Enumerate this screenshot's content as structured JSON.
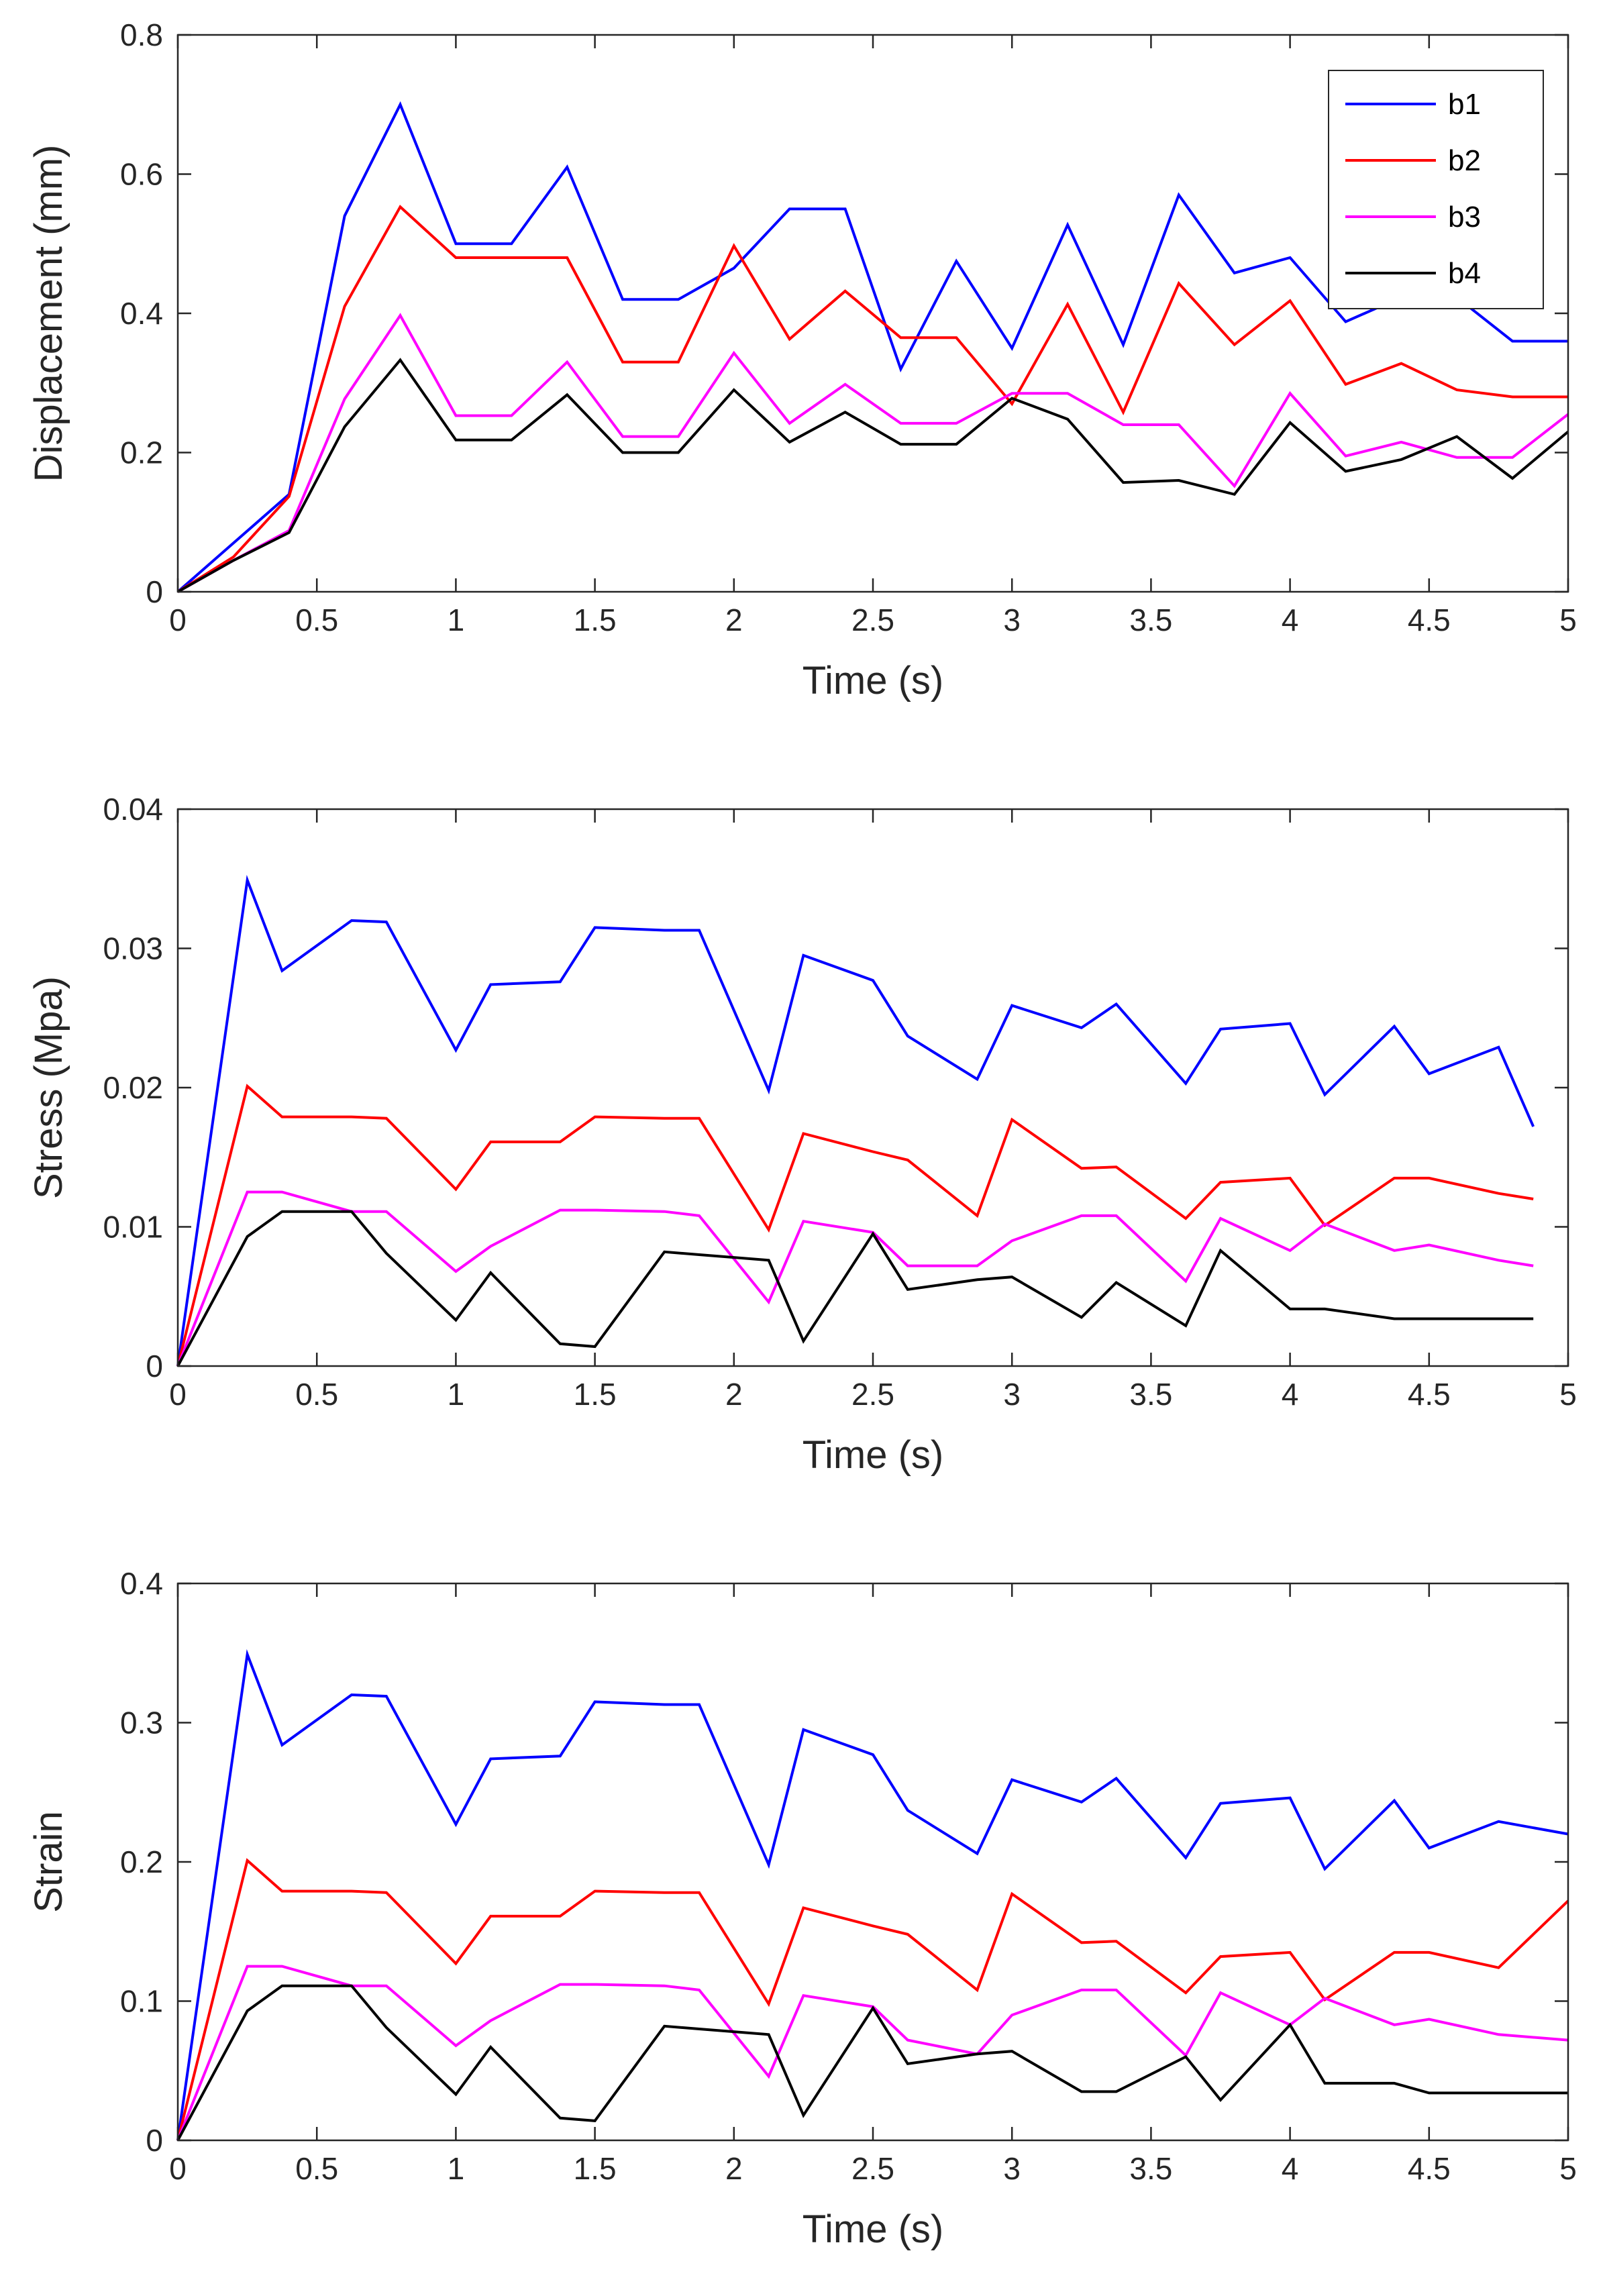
{
  "chart_data": [
    {
      "type": "line",
      "xlabel": "Time (s)",
      "ylabel": "Displacement (mm)",
      "xlim": [
        0,
        5
      ],
      "ylim": [
        0,
        0.8
      ],
      "xticks": [
        "0",
        "0.5",
        "1",
        "1.5",
        "2",
        "2.5",
        "3",
        "3.5",
        "4",
        "4.5",
        "5"
      ],
      "yticks": [
        "0",
        "0.2",
        "0.4",
        "0.6",
        "0.8"
      ],
      "grid": false,
      "legend": {
        "placement": "top-right",
        "entries": [
          "b1",
          "b2",
          "b3",
          "b4"
        ]
      },
      "x": [
        0,
        0.2,
        0.4,
        0.6,
        0.8,
        1.0,
        1.2,
        1.4,
        1.6,
        1.8,
        2.0,
        2.2,
        2.4,
        2.6,
        2.8,
        3.0,
        3.2,
        3.4,
        3.6,
        3.8,
        4.0,
        4.2,
        4.4,
        4.6,
        4.8,
        5.0
      ],
      "series": [
        {
          "name": "b1",
          "color": "#0000ff",
          "values": [
            0,
            0.07,
            0.14,
            0.54,
            0.7,
            0.5,
            0.5,
            0.61,
            0.42,
            0.42,
            0.465,
            0.55,
            0.55,
            0.32,
            0.475,
            0.35,
            0.527,
            0.355,
            0.57,
            0.458,
            0.48,
            0.388,
            0.423,
            0.423,
            0.36,
            0.36
          ]
        },
        {
          "name": "b2",
          "color": "#ff0000",
          "values": [
            0,
            0.05,
            0.137,
            0.41,
            0.553,
            0.48,
            0.48,
            0.48,
            0.33,
            0.33,
            0.497,
            0.363,
            0.432,
            0.365,
            0.365,
            0.27,
            0.413,
            0.258,
            0.443,
            0.355,
            0.418,
            0.298,
            0.328,
            0.29,
            0.28,
            0.28
          ]
        },
        {
          "name": "b3",
          "color": "#ff00ff",
          "values": [
            0,
            0.045,
            0.088,
            0.277,
            0.397,
            0.253,
            0.253,
            0.33,
            0.223,
            0.223,
            0.343,
            0.242,
            0.298,
            0.242,
            0.242,
            0.285,
            0.285,
            0.24,
            0.24,
            0.152,
            0.285,
            0.195,
            0.215,
            0.193,
            0.193,
            0.255
          ]
        },
        {
          "name": "b4",
          "color": "#000000",
          "values": [
            0,
            0.045,
            0.085,
            0.237,
            0.333,
            0.218,
            0.218,
            0.283,
            0.2,
            0.2,
            0.29,
            0.215,
            0.258,
            0.212,
            0.212,
            0.278,
            0.248,
            0.157,
            0.16,
            0.14,
            0.243,
            0.173,
            0.19,
            0.223,
            0.163,
            0.23
          ]
        }
      ]
    },
    {
      "type": "line",
      "xlabel": "Time (s)",
      "ylabel": "Stress (Mpa)",
      "xlim": [
        0,
        5
      ],
      "ylim": [
        0,
        0.04
      ],
      "xticks": [
        "0",
        "0.5",
        "1",
        "1.5",
        "2",
        "2.5",
        "3",
        "3.5",
        "4",
        "4.5",
        "5"
      ],
      "yticks": [
        "0",
        "0.01",
        "0.02",
        "0.03",
        "0.04"
      ],
      "grid": false,
      "x": [
        0,
        0.25,
        0.375,
        0.625,
        0.75,
        1.0,
        1.125,
        1.375,
        1.5,
        1.75,
        1.875,
        2.125,
        2.25,
        2.5,
        2.625,
        2.875,
        3.0,
        3.25,
        3.375,
        3.625,
        3.75,
        4.0,
        4.125,
        4.375,
        4.5,
        4.75,
        4.875
      ],
      "series": [
        {
          "name": "b1",
          "color": "#0000ff",
          "values": [
            0,
            0.0349,
            0.0284,
            0.032,
            0.0319,
            0.0227,
            0.0274,
            0.0276,
            0.0315,
            0.0313,
            0.0313,
            0.0198,
            0.0295,
            0.0277,
            0.0237,
            0.0206,
            0.0259,
            0.0243,
            0.026,
            0.0203,
            0.0242,
            0.0246,
            0.0195,
            0.0244,
            0.021,
            0.0229,
            0.0172
          ]
        },
        {
          "name": "b2",
          "color": "#ff0000",
          "values": [
            0,
            0.0201,
            0.0179,
            0.0179,
            0.0178,
            0.0127,
            0.0161,
            0.0161,
            0.0179,
            0.0178,
            0.0178,
            0.0098,
            0.0167,
            0.0154,
            0.0148,
            0.0108,
            0.0177,
            0.0142,
            0.0143,
            0.0106,
            0.0132,
            0.0135,
            0.0101,
            0.0135,
            0.0135,
            0.0124,
            0.012
          ]
        },
        {
          "name": "b3",
          "color": "#ff00ff",
          "values": [
            0,
            0.0125,
            0.0125,
            0.0111,
            0.0111,
            0.0068,
            0.0086,
            0.0112,
            0.0112,
            0.0111,
            0.0108,
            0.0046,
            0.0104,
            0.0096,
            0.0072,
            0.0072,
            0.009,
            0.0108,
            0.0108,
            0.0061,
            0.0106,
            0.0083,
            0.0102,
            0.0083,
            0.0087,
            0.0076,
            0.0072
          ]
        },
        {
          "name": "b4",
          "color": "#000000",
          "values": [
            0,
            0.0093,
            0.0111,
            0.0111,
            0.0081,
            0.0033,
            0.0067,
            0.0016,
            0.0014,
            0.0082,
            0.008,
            0.0076,
            0.0018,
            0.0095,
            0.0055,
            0.0062,
            0.0064,
            0.0035,
            0.006,
            0.0029,
            0.0083,
            0.0041,
            0.0041,
            0.0034,
            0.0034,
            0.0034,
            0.0034
          ]
        }
      ]
    },
    {
      "type": "line",
      "xlabel": "Time (s)",
      "ylabel": "Strain",
      "xlim": [
        0,
        5
      ],
      "ylim": [
        0,
        0.4
      ],
      "xticks": [
        "0",
        "0.5",
        "1",
        "1.5",
        "2",
        "2.5",
        "3",
        "3.5",
        "4",
        "4.5",
        "5"
      ],
      "yticks": [
        "0",
        "0.1",
        "0.2",
        "0.3",
        "0.4"
      ],
      "grid": false,
      "x": [
        0,
        0.25,
        0.375,
        0.625,
        0.75,
        1.0,
        1.125,
        1.375,
        1.5,
        1.75,
        1.875,
        2.125,
        2.25,
        2.5,
        2.625,
        2.875,
        3.0,
        3.25,
        3.375,
        3.625,
        3.75,
        4.0,
        4.125,
        4.375,
        4.5,
        4.75,
        5.0
      ],
      "series": [
        {
          "name": "b1",
          "color": "#0000ff",
          "values": [
            0,
            0.349,
            0.284,
            0.32,
            0.319,
            0.227,
            0.274,
            0.276,
            0.315,
            0.313,
            0.313,
            0.198,
            0.295,
            0.277,
            0.237,
            0.206,
            0.259,
            0.243,
            0.26,
            0.203,
            0.242,
            0.246,
            0.195,
            0.244,
            0.21,
            0.229,
            0.22
          ]
        },
        {
          "name": "b2",
          "color": "#ff0000",
          "values": [
            0,
            0.201,
            0.179,
            0.179,
            0.178,
            0.127,
            0.161,
            0.161,
            0.179,
            0.178,
            0.178,
            0.098,
            0.167,
            0.154,
            0.148,
            0.108,
            0.177,
            0.142,
            0.143,
            0.106,
            0.132,
            0.135,
            0.101,
            0.135,
            0.135,
            0.124,
            0.172
          ]
        },
        {
          "name": "b3",
          "color": "#ff00ff",
          "values": [
            0,
            0.125,
            0.125,
            0.111,
            0.111,
            0.068,
            0.086,
            0.112,
            0.112,
            0.111,
            0.108,
            0.046,
            0.104,
            0.096,
            0.072,
            0.062,
            0.09,
            0.108,
            0.108,
            0.061,
            0.106,
            0.083,
            0.102,
            0.083,
            0.087,
            0.076,
            0.072
          ]
        },
        {
          "name": "b4",
          "color": "#000000",
          "values": [
            0,
            0.093,
            0.111,
            0.111,
            0.081,
            0.033,
            0.067,
            0.016,
            0.014,
            0.082,
            0.08,
            0.076,
            0.018,
            0.095,
            0.055,
            0.062,
            0.064,
            0.035,
            0.035,
            0.06,
            0.029,
            0.083,
            0.041,
            0.041,
            0.034,
            0.034,
            0.034
          ]
        }
      ]
    }
  ]
}
